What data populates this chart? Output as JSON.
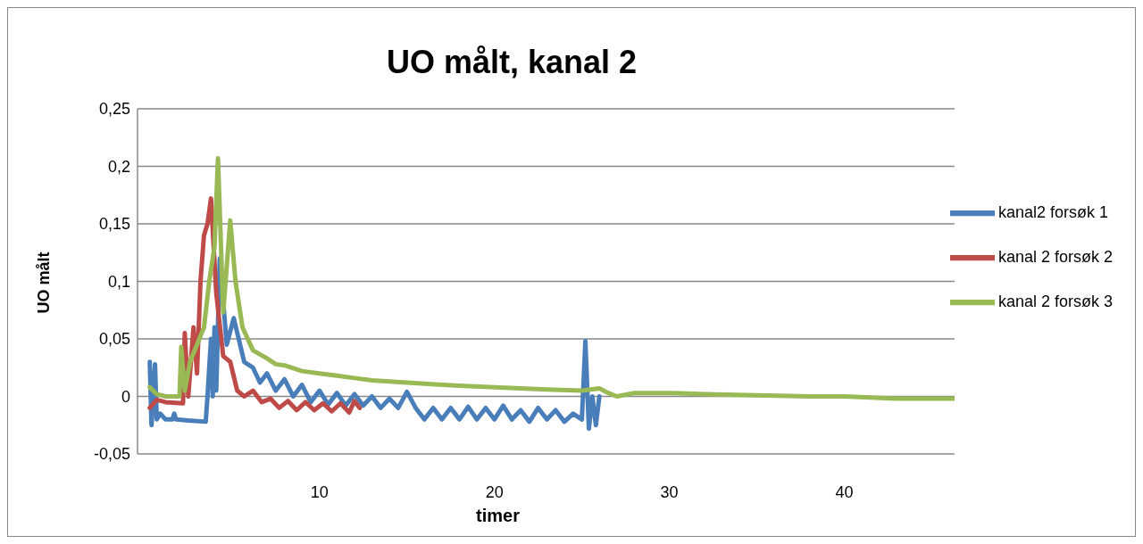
{
  "chart_data": {
    "type": "line",
    "title": "UO målt, kanal 2",
    "xlabel": "timer",
    "ylabel": "UO målt",
    "xlim": [
      -0.4,
      46.3
    ],
    "xticks": [
      10,
      20,
      30,
      40
    ],
    "ylim": [
      -0.05,
      0.25
    ],
    "yticks": [
      {
        "value": -0.05,
        "label": "-0,05"
      },
      0,
      {
        "value": 0.05,
        "label": "0,05"
      },
      {
        "value": 0.1,
        "label": "0,1"
      },
      {
        "value": 0.15,
        "label": "0,15"
      },
      {
        "value": 0.2,
        "label": "0,2"
      },
      {
        "value": 0.25,
        "label": "0,25"
      }
    ],
    "grid": "y",
    "legend": "right",
    "marker": "none",
    "line_style": "solid",
    "series": [
      {
        "name": "kanal2 forsøk 1",
        "color": "#4a7ebb",
        "x": [
          0.3,
          0.4,
          0.6,
          0.7,
          0.9,
          1.2,
          1.6,
          1.7,
          1.8,
          2.5,
          3.5,
          3.6,
          3.8,
          3.9,
          4.0,
          4.1,
          4.3,
          4.7,
          5.1,
          5.7,
          6.2,
          6.6,
          7.0,
          7.5,
          8.0,
          8.5,
          9.0,
          9.5,
          10.0,
          10.5,
          11.0,
          11.5,
          12.0,
          12.5,
          13.0,
          13.5,
          14.0,
          14.5,
          15.0,
          15.5,
          16.0,
          16.5,
          17.0,
          17.5,
          18.0,
          18.5,
          19.0,
          19.5,
          20.0,
          20.5,
          21.0,
          21.5,
          22.0,
          22.5,
          23.0,
          23.5,
          24.0,
          24.5,
          25.0,
          25.2,
          25.4,
          25.6,
          25.8,
          26.0
        ],
        "values": [
          0.03,
          -0.025,
          0.028,
          -0.02,
          -0.015,
          -0.02,
          -0.02,
          -0.015,
          -0.02,
          -0.021,
          -0.022,
          0.0,
          0.05,
          0.0,
          0.06,
          0.005,
          0.12,
          0.045,
          0.068,
          0.03,
          0.025,
          0.012,
          0.02,
          0.005,
          0.015,
          0.0,
          0.01,
          -0.005,
          0.005,
          -0.007,
          0.003,
          -0.008,
          0.002,
          -0.008,
          0.0,
          -0.01,
          -0.002,
          -0.01,
          0.004,
          -0.01,
          -0.02,
          -0.01,
          -0.02,
          -0.01,
          -0.02,
          -0.009,
          -0.02,
          -0.01,
          -0.02,
          -0.008,
          -0.02,
          -0.012,
          -0.022,
          -0.01,
          -0.02,
          -0.012,
          -0.022,
          -0.015,
          -0.02,
          0.048,
          -0.028,
          0.0,
          -0.025,
          0.0
        ]
      },
      {
        "name": "kanal 2 forsøk 2",
        "color": "#be4b48",
        "x": [
          0.3,
          0.7,
          1.2,
          2.2,
          2.3,
          2.5,
          2.8,
          3.0,
          3.2,
          3.4,
          3.6,
          3.8,
          4.1,
          4.5,
          4.9,
          5.3,
          5.7,
          6.2,
          6.7,
          7.2,
          7.7,
          8.2,
          8.7,
          9.2,
          9.7,
          10.2,
          10.7,
          11.2,
          11.7,
          12.0,
          12.3
        ],
        "values": [
          -0.01,
          -0.003,
          -0.005,
          -0.006,
          0.055,
          0.0,
          0.06,
          0.02,
          0.1,
          0.14,
          0.15,
          0.172,
          0.09,
          0.035,
          0.03,
          0.005,
          0.0,
          0.005,
          -0.005,
          -0.002,
          -0.01,
          -0.004,
          -0.012,
          -0.005,
          -0.012,
          -0.006,
          -0.013,
          -0.006,
          -0.014,
          -0.004,
          -0.01
        ]
      },
      {
        "name": "kanal 2 forsøk 3",
        "color": "#98b954",
        "x": [
          0.3,
          0.7,
          1.2,
          2.0,
          2.1,
          2.3,
          2.6,
          3.0,
          3.4,
          3.7,
          4.0,
          4.2,
          4.5,
          4.9,
          5.2,
          5.6,
          6.2,
          7.0,
          7.5,
          8.0,
          9.0,
          10.0,
          11.0,
          12.0,
          13.0,
          15.0,
          17.0,
          20.0,
          23.0,
          25.0,
          26.0,
          26.5,
          27.0,
          28.0,
          30.0,
          32.0,
          35.0,
          38.0,
          40.0,
          43.0,
          46.3
        ],
        "values": [
          0.008,
          0.002,
          0.0,
          0.0,
          0.043,
          0.005,
          0.03,
          0.045,
          0.06,
          0.1,
          0.13,
          0.207,
          0.073,
          0.153,
          0.1,
          0.06,
          0.04,
          0.033,
          0.028,
          0.027,
          0.022,
          0.02,
          0.018,
          0.016,
          0.014,
          0.012,
          0.01,
          0.008,
          0.006,
          0.005,
          0.007,
          0.003,
          0.0,
          0.003,
          0.003,
          0.002,
          0.001,
          0.0,
          0.0,
          -0.002,
          -0.002
        ]
      }
    ]
  }
}
